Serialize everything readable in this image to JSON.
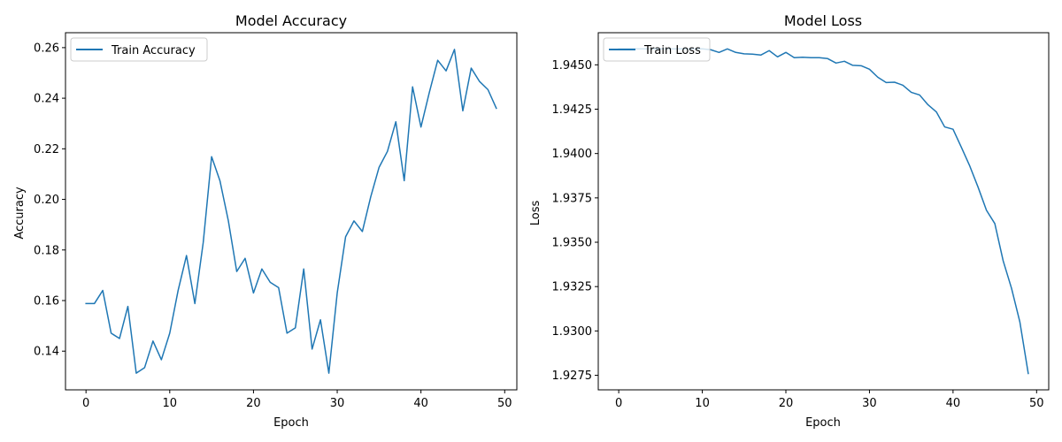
{
  "colors": {
    "line": "#1f77b4",
    "axis": "#000000",
    "background": "#ffffff"
  },
  "chart_data": [
    {
      "type": "line",
      "title": "Model Accuracy",
      "xlabel": "Epoch",
      "ylabel": "Accuracy",
      "xlim": [
        -2.45,
        51.45
      ],
      "ylim": [
        0.1247,
        0.2659
      ],
      "xticks": [
        0,
        10,
        20,
        30,
        40,
        50
      ],
      "yticks": [
        0.14,
        0.16,
        0.18,
        0.2,
        0.22,
        0.24,
        0.26
      ],
      "ytick_labels": [
        "0.14",
        "0.16",
        "0.18",
        "0.20",
        "0.22",
        "0.24",
        "0.26"
      ],
      "legend_position": "upper-left",
      "grid": false,
      "series": [
        {
          "name": "Train Accuracy",
          "x": [
            0,
            1,
            2,
            3,
            4,
            5,
            6,
            7,
            8,
            9,
            10,
            11,
            12,
            13,
            14,
            15,
            16,
            17,
            18,
            19,
            20,
            21,
            22,
            23,
            24,
            25,
            26,
            27,
            28,
            29,
            30,
            31,
            32,
            33,
            34,
            35,
            36,
            37,
            38,
            39,
            40,
            41,
            42,
            43,
            44,
            45,
            46,
            47,
            48,
            49
          ],
          "values": [
            0.1588,
            0.1588,
            0.164,
            0.1471,
            0.145,
            0.1577,
            0.1313,
            0.1335,
            0.144,
            0.1366,
            0.1471,
            0.164,
            0.1778,
            0.1588,
            0.183,
            0.2169,
            0.2073,
            0.1915,
            0.1715,
            0.1767,
            0.163,
            0.1725,
            0.1672,
            0.1651,
            0.1471,
            0.1492,
            0.1725,
            0.1408,
            0.1524,
            0.1313,
            0.163,
            0.1852,
            0.1915,
            0.1873,
            0.201,
            0.2127,
            0.219,
            0.2307,
            0.2074,
            0.2445,
            0.2286,
            0.2423,
            0.255,
            0.2508,
            0.2593,
            0.235,
            0.2519,
            0.2466,
            0.2434,
            0.236
          ]
        }
      ]
    },
    {
      "type": "line",
      "title": "Model Loss",
      "xlabel": "Epoch",
      "ylabel": "Loss",
      "xlim": [
        -2.45,
        51.45
      ],
      "ylim": [
        1.92668,
        1.94681
      ],
      "xticks": [
        0,
        10,
        20,
        30,
        40,
        50
      ],
      "yticks": [
        1.9275,
        1.93,
        1.9325,
        1.935,
        1.9375,
        1.94,
        1.9425,
        1.945
      ],
      "ytick_labels": [
        "1.9275",
        "1.9300",
        "1.9325",
        "1.9350",
        "1.9375",
        "1.9400",
        "1.9425",
        "1.9450"
      ],
      "legend_position": "upper-left",
      "grid": false,
      "series": [
        {
          "name": "Train Loss",
          "x": [
            0,
            1,
            2,
            3,
            4,
            5,
            6,
            7,
            8,
            9,
            10,
            11,
            12,
            13,
            14,
            15,
            16,
            17,
            18,
            19,
            20,
            21,
            22,
            23,
            24,
            25,
            26,
            27,
            28,
            29,
            30,
            31,
            32,
            33,
            34,
            35,
            36,
            37,
            38,
            39,
            40,
            41,
            42,
            43,
            44,
            45,
            46,
            47,
            48,
            49
          ],
          "values": [
            1.9459,
            1.9459,
            1.9459,
            1.9459,
            1.9459,
            1.9459,
            1.9459,
            1.9459,
            1.9459,
            1.9459,
            1.9459,
            1.94585,
            1.9457,
            1.9459,
            1.9457,
            1.94562,
            1.9456,
            1.94555,
            1.9458,
            1.94545,
            1.9457,
            1.9454,
            1.94543,
            1.9454,
            1.9454,
            1.94535,
            1.9451,
            1.9452,
            1.94497,
            1.94495,
            1.94475,
            1.9443,
            1.944,
            1.94402,
            1.94385,
            1.94345,
            1.9433,
            1.94275,
            1.94235,
            1.9415,
            1.94137,
            1.94035,
            1.9393,
            1.9381,
            1.9368,
            1.93605,
            1.93395,
            1.9324,
            1.9305,
            1.9276
          ]
        }
      ]
    }
  ]
}
